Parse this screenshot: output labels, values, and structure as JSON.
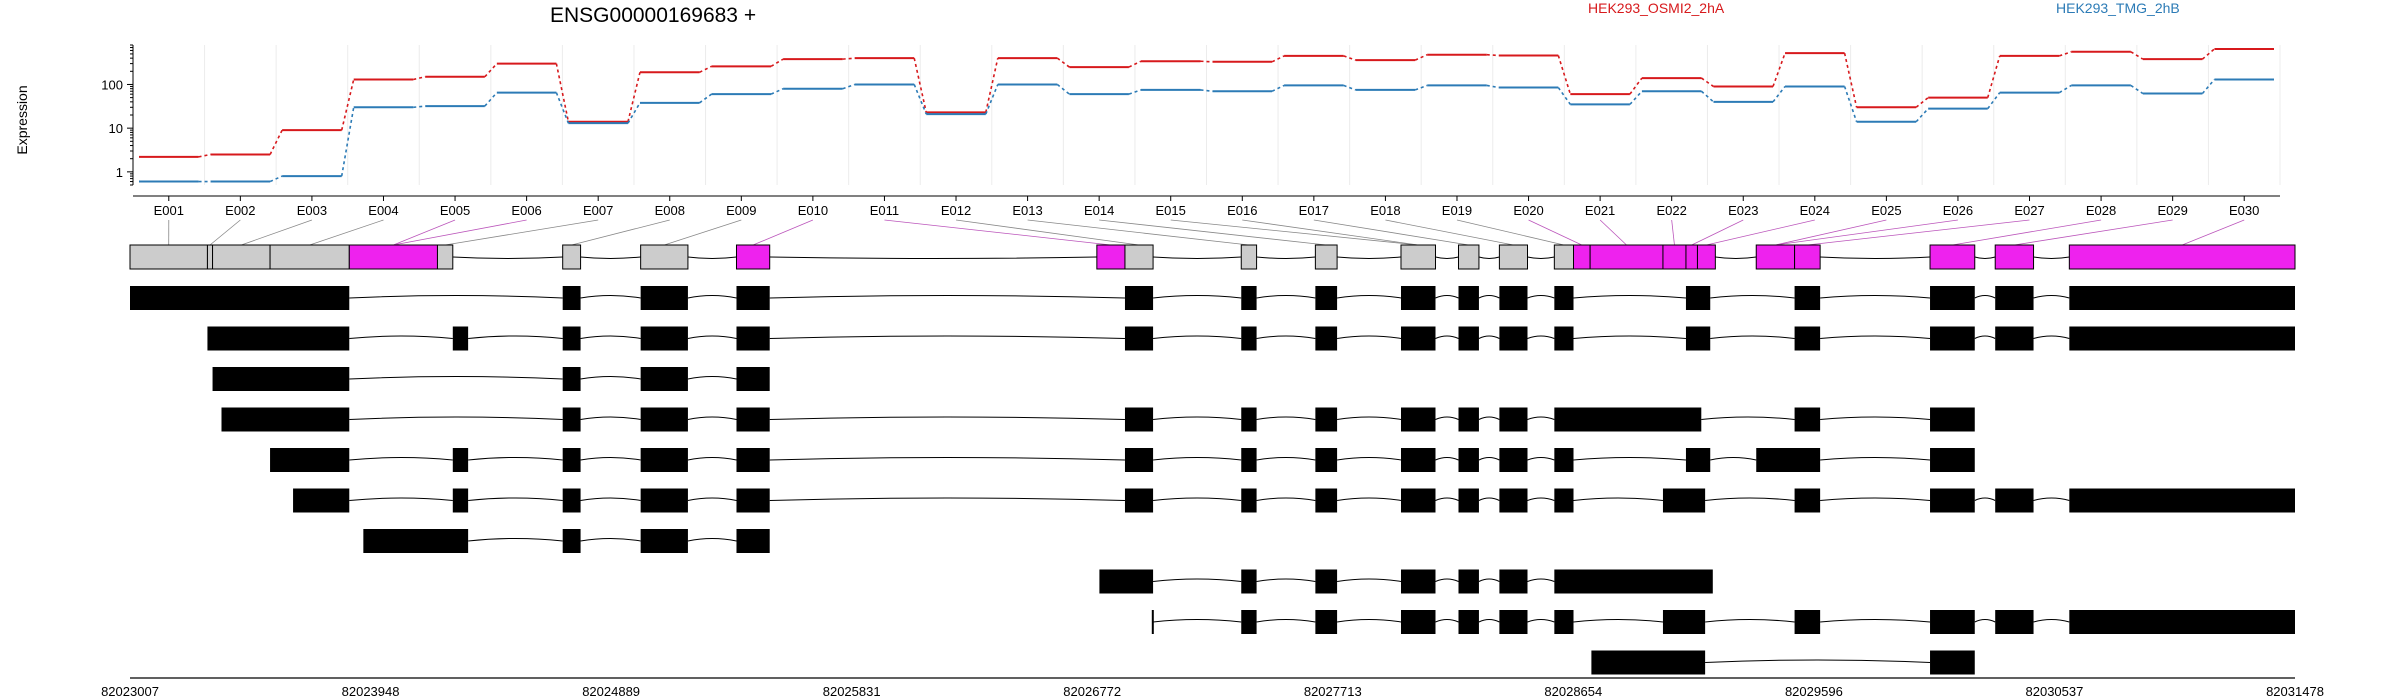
{
  "chart_data": {
    "type": "line",
    "title": "ENSG00000169683 +",
    "ylabel": "Expression",
    "y_scale": "log",
    "y_ticks": [
      "1",
      "10",
      "100"
    ],
    "y_tick_values": [
      1,
      10,
      100
    ],
    "ylim": [
      0.5,
      800
    ],
    "grid": true,
    "legend_placement": "top-right",
    "categories": [
      "E001",
      "E002",
      "E003",
      "E004",
      "E005",
      "E006",
      "E007",
      "E008",
      "E009",
      "E010",
      "E011",
      "E012",
      "E013",
      "E014",
      "E015",
      "E016",
      "E017",
      "E018",
      "E019",
      "E020",
      "E021",
      "E022",
      "E023",
      "E024",
      "E025",
      "E026",
      "E027",
      "E028",
      "E029",
      "E030"
    ],
    "series": [
      {
        "name": "HEK293_OSMI2_2hA",
        "color": "#d7191c",
        "values": [
          2.2,
          2.5,
          9,
          130,
          150,
          300,
          14,
          190,
          260,
          380,
          400,
          23,
          400,
          250,
          340,
          330,
          450,
          360,
          480,
          460,
          60,
          140,
          90,
          520,
          30,
          50,
          450,
          560,
          380,
          650
        ]
      },
      {
        "name": "HEK293_TMG_2hB",
        "color": "#2c7bb6",
        "values": [
          0.6,
          0.6,
          0.8,
          30,
          32,
          65,
          13,
          38,
          60,
          80,
          100,
          21,
          100,
          60,
          75,
          70,
          95,
          75,
          95,
          85,
          35,
          70,
          40,
          90,
          14,
          28,
          65,
          95,
          62,
          130
        ]
      }
    ],
    "exon_labels": [
      "E001",
      "E002",
      "E003",
      "E004",
      "E005",
      "E006",
      "E007",
      "E008",
      "E009",
      "E010",
      "E011",
      "E012",
      "E013",
      "E014",
      "E015",
      "E016",
      "E017",
      "E018",
      "E019",
      "E020",
      "E021",
      "E022",
      "E023",
      "E024",
      "E025",
      "E026",
      "E027",
      "E028",
      "E029",
      "E030"
    ],
    "genomic_ticks": [
      "82023007",
      "82023948",
      "82024889",
      "82025831",
      "82026772",
      "82027713",
      "82028654",
      "82029596",
      "82030537",
      "82031478"
    ],
    "genomic_range": [
      82023007,
      82031478
    ],
    "exon_model": {
      "colors": {
        "significant": "#ee22ee",
        "normal": "#cccccc"
      },
      "segments": [
        {
          "start": 82023007,
          "end": 82023310,
          "state": "normal"
        },
        {
          "start": 82023310,
          "end": 82023330,
          "state": "normal"
        },
        {
          "start": 82023330,
          "end": 82023555,
          "state": "normal"
        },
        {
          "start": 82023555,
          "end": 82023865,
          "state": "normal"
        },
        {
          "start": 82023865,
          "end": 82024210,
          "state": "significant"
        },
        {
          "start": 82024210,
          "end": 82024270,
          "state": "normal"
        },
        {
          "start": 82024700,
          "end": 82024770,
          "state": "normal"
        },
        {
          "start": 82025005,
          "end": 82025190,
          "state": "normal"
        },
        {
          "start": 82025380,
          "end": 82025510,
          "state": "significant"
        },
        {
          "start": 82026790,
          "end": 82026900,
          "state": "significant"
        },
        {
          "start": 82026900,
          "end": 82027010,
          "state": "normal"
        },
        {
          "start": 82027355,
          "end": 82027415,
          "state": "normal"
        },
        {
          "start": 82027645,
          "end": 82027730,
          "state": "normal"
        },
        {
          "start": 82027980,
          "end": 82028115,
          "state": "normal"
        },
        {
          "start": 82028205,
          "end": 82028285,
          "state": "normal"
        },
        {
          "start": 82028365,
          "end": 82028475,
          "state": "normal"
        },
        {
          "start": 82028580,
          "end": 82028655,
          "state": "normal"
        },
        {
          "start": 82028655,
          "end": 82028720,
          "state": "significant"
        },
        {
          "start": 82028720,
          "end": 82029005,
          "state": "significant"
        },
        {
          "start": 82029005,
          "end": 82029095,
          "state": "significant"
        },
        {
          "start": 82029095,
          "end": 82029140,
          "state": "significant"
        },
        {
          "start": 82029140,
          "end": 82029210,
          "state": "significant"
        },
        {
          "start": 82029370,
          "end": 82029520,
          "state": "significant"
        },
        {
          "start": 82029520,
          "end": 82029620,
          "state": "significant"
        },
        {
          "start": 82030050,
          "end": 82030225,
          "state": "significant"
        },
        {
          "start": 82030305,
          "end": 82030455,
          "state": "significant"
        },
        {
          "start": 82030595,
          "end": 82031478,
          "state": "significant"
        }
      ]
    },
    "transcripts": [
      {
        "exons": [
          [
            82023007,
            82023865
          ],
          [
            82024700,
            82024770
          ],
          [
            82025005,
            82025190
          ],
          [
            82025380,
            82025510
          ],
          [
            82026900,
            82027010
          ],
          [
            82027355,
            82027415
          ],
          [
            82027645,
            82027730
          ],
          [
            82027980,
            82028115
          ],
          [
            82028205,
            82028285
          ],
          [
            82028365,
            82028475
          ],
          [
            82028580,
            82028655
          ],
          [
            82029095,
            82029190
          ],
          [
            82029520,
            82029620
          ],
          [
            82030050,
            82030225
          ],
          [
            82030305,
            82030455
          ],
          [
            82030595,
            82031478
          ]
        ]
      },
      {
        "exons": [
          [
            82023310,
            82023865
          ],
          [
            82024270,
            82024330
          ],
          [
            82024700,
            82024770
          ],
          [
            82025005,
            82025190
          ],
          [
            82025380,
            82025510
          ],
          [
            82026900,
            82027010
          ],
          [
            82027355,
            82027415
          ],
          [
            82027645,
            82027730
          ],
          [
            82027980,
            82028115
          ],
          [
            82028205,
            82028285
          ],
          [
            82028365,
            82028475
          ],
          [
            82028580,
            82028655
          ],
          [
            82029095,
            82029190
          ],
          [
            82029520,
            82029620
          ],
          [
            82030050,
            82030225
          ],
          [
            82030305,
            82030455
          ],
          [
            82030595,
            82031478
          ]
        ]
      },
      {
        "exons": [
          [
            82023330,
            82023865
          ],
          [
            82024700,
            82024770
          ],
          [
            82025005,
            82025190
          ],
          [
            82025380,
            82025510
          ]
        ]
      },
      {
        "exons": [
          [
            82023365,
            82023865
          ],
          [
            82024700,
            82024770
          ],
          [
            82025005,
            82025190
          ],
          [
            82025380,
            82025510
          ],
          [
            82026900,
            82027010
          ],
          [
            82027355,
            82027415
          ],
          [
            82027645,
            82027730
          ],
          [
            82027980,
            82028115
          ],
          [
            82028205,
            82028285
          ],
          [
            82028365,
            82028475
          ],
          [
            82028580,
            82029155
          ],
          [
            82029520,
            82029620
          ],
          [
            82030050,
            82030225
          ]
        ]
      },
      {
        "exons": [
          [
            82023555,
            82023865
          ],
          [
            82024270,
            82024330
          ],
          [
            82024700,
            82024770
          ],
          [
            82025005,
            82025190
          ],
          [
            82025380,
            82025510
          ],
          [
            82026900,
            82027010
          ],
          [
            82027355,
            82027415
          ],
          [
            82027645,
            82027730
          ],
          [
            82027980,
            82028115
          ],
          [
            82028205,
            82028285
          ],
          [
            82028365,
            82028475
          ],
          [
            82028580,
            82028655
          ],
          [
            82029095,
            82029190
          ],
          [
            82029370,
            82029620
          ],
          [
            82030050,
            82030225
          ]
        ]
      },
      {
        "exons": [
          [
            82023645,
            82023865
          ],
          [
            82024270,
            82024330
          ],
          [
            82024700,
            82024770
          ],
          [
            82025005,
            82025190
          ],
          [
            82025380,
            82025510
          ],
          [
            82026900,
            82027010
          ],
          [
            82027355,
            82027415
          ],
          [
            82027645,
            82027730
          ],
          [
            82027980,
            82028115
          ],
          [
            82028205,
            82028285
          ],
          [
            82028365,
            82028475
          ],
          [
            82028580,
            82028655
          ],
          [
            82029005,
            82029170
          ],
          [
            82029520,
            82029620
          ],
          [
            82030050,
            82030225
          ],
          [
            82030305,
            82030455
          ],
          [
            82030595,
            82031478
          ]
        ]
      },
      {
        "exons": [
          [
            82023920,
            82024330
          ],
          [
            82024700,
            82024770
          ],
          [
            82025005,
            82025190
          ],
          [
            82025380,
            82025510
          ]
        ]
      },
      {
        "exons": [
          [
            82026800,
            82027010
          ],
          [
            82027355,
            82027415
          ],
          [
            82027645,
            82027730
          ],
          [
            82027980,
            82028115
          ],
          [
            82028205,
            82028285
          ],
          [
            82028365,
            82028475
          ],
          [
            82028580,
            82029200
          ]
        ]
      },
      {
        "exons": [
          [
            82027005,
            82027010
          ],
          [
            82027355,
            82027415
          ],
          [
            82027645,
            82027730
          ],
          [
            82027980,
            82028115
          ],
          [
            82028205,
            82028285
          ],
          [
            82028365,
            82028475
          ],
          [
            82028580,
            82028655
          ],
          [
            82029005,
            82029170
          ],
          [
            82029520,
            82029620
          ],
          [
            82030050,
            82030225
          ],
          [
            82030305,
            82030455
          ],
          [
            82030595,
            82031478
          ]
        ]
      },
      {
        "exons": [
          [
            82028725,
            82029170
          ],
          [
            82030050,
            82030225
          ]
        ]
      }
    ]
  }
}
